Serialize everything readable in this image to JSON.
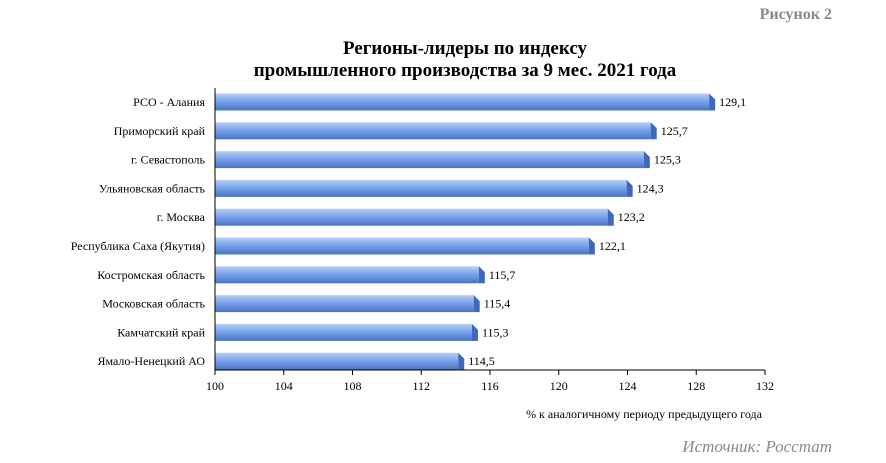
{
  "figure_label": "Рисунок 2",
  "source": "Источник: Росстат",
  "colors": {
    "bar": "#6f9be8",
    "bar_dark": "#3f68b8",
    "bar_light": "#a9c6f5",
    "axis": "#000000"
  },
  "chart_data": {
    "type": "bar",
    "orientation": "horizontal",
    "title_line1": "Регионы-лидеры по индексу",
    "title_line2": "промышленного производства за 9 мес. 2021 года",
    "xlabel": "% к аналогичному периоду предыдущего года",
    "categories": [
      "РСО - Алания",
      "Приморский край",
      "г. Севастополь",
      "Ульяновская область",
      "г. Москва",
      "Республика Саха (Якутия)",
      "Костромская область",
      "Московская область",
      "Камчатский край",
      "Ямало-Ненецкий АО"
    ],
    "values": [
      129.1,
      125.7,
      125.3,
      124.3,
      123.2,
      122.1,
      115.7,
      115.4,
      115.3,
      114.5
    ],
    "value_labels": [
      "129,1",
      "125,7",
      "125,3",
      "124,3",
      "123,2",
      "122,1",
      "115,7",
      "115,4",
      "115,3",
      "114,5"
    ],
    "xlim": [
      100,
      132
    ],
    "xticks": [
      100,
      104,
      108,
      112,
      116,
      120,
      124,
      128,
      132
    ],
    "grid": false,
    "legend": "none"
  }
}
